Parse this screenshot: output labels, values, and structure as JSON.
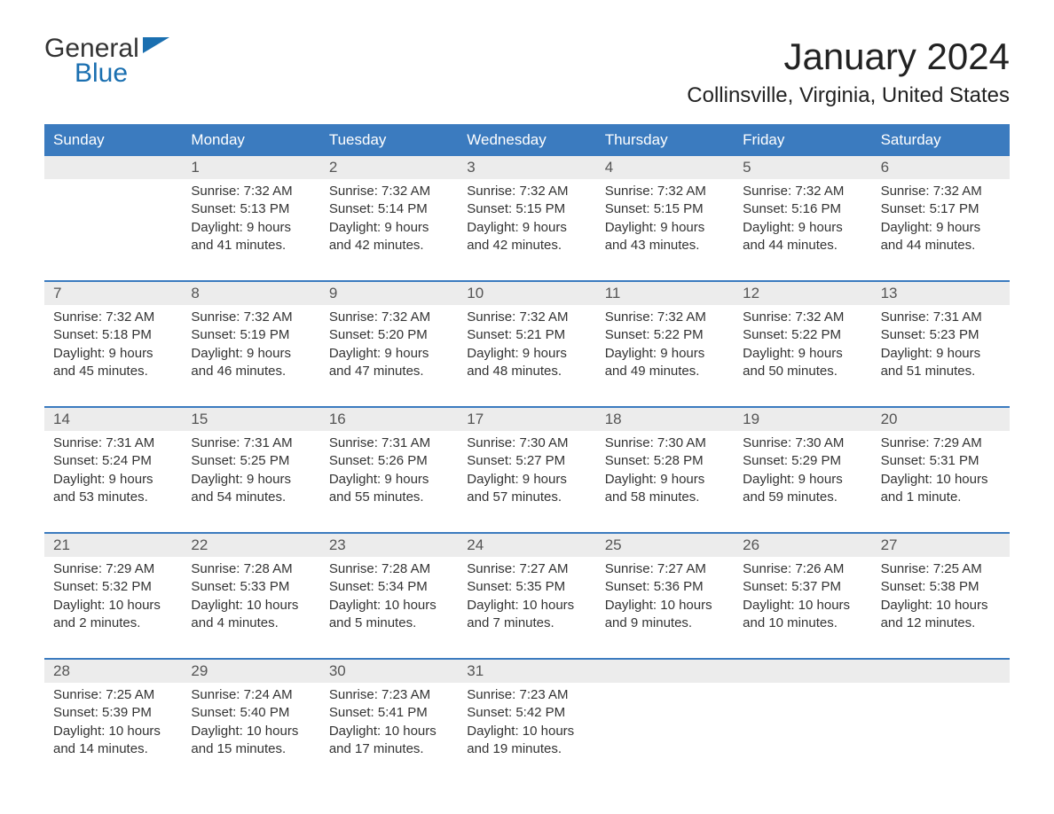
{
  "logo": {
    "line1": "General",
    "line2": "Blue",
    "tri_color": "#1a6fb0"
  },
  "title": "January 2024",
  "location": "Collinsville, Virginia, United States",
  "colors": {
    "header_blue": "#3b7bbf",
    "row_grey": "#ececec",
    "divider": "#3b7bbf",
    "text": "#333333",
    "background": "#ffffff"
  },
  "weekdays": [
    "Sunday",
    "Monday",
    "Tuesday",
    "Wednesday",
    "Thursday",
    "Friday",
    "Saturday"
  ],
  "layout": {
    "cols": 7,
    "rows": 5,
    "start_col": 1
  },
  "weeks": [
    [
      {},
      {
        "n": "1",
        "sunrise": "Sunrise: 7:32 AM",
        "sunset": "Sunset: 5:13 PM",
        "d1": "Daylight: 9 hours",
        "d2": "and 41 minutes."
      },
      {
        "n": "2",
        "sunrise": "Sunrise: 7:32 AM",
        "sunset": "Sunset: 5:14 PM",
        "d1": "Daylight: 9 hours",
        "d2": "and 42 minutes."
      },
      {
        "n": "3",
        "sunrise": "Sunrise: 7:32 AM",
        "sunset": "Sunset: 5:15 PM",
        "d1": "Daylight: 9 hours",
        "d2": "and 42 minutes."
      },
      {
        "n": "4",
        "sunrise": "Sunrise: 7:32 AM",
        "sunset": "Sunset: 5:15 PM",
        "d1": "Daylight: 9 hours",
        "d2": "and 43 minutes."
      },
      {
        "n": "5",
        "sunrise": "Sunrise: 7:32 AM",
        "sunset": "Sunset: 5:16 PM",
        "d1": "Daylight: 9 hours",
        "d2": "and 44 minutes."
      },
      {
        "n": "6",
        "sunrise": "Sunrise: 7:32 AM",
        "sunset": "Sunset: 5:17 PM",
        "d1": "Daylight: 9 hours",
        "d2": "and 44 minutes."
      }
    ],
    [
      {
        "n": "7",
        "sunrise": "Sunrise: 7:32 AM",
        "sunset": "Sunset: 5:18 PM",
        "d1": "Daylight: 9 hours",
        "d2": "and 45 minutes."
      },
      {
        "n": "8",
        "sunrise": "Sunrise: 7:32 AM",
        "sunset": "Sunset: 5:19 PM",
        "d1": "Daylight: 9 hours",
        "d2": "and 46 minutes."
      },
      {
        "n": "9",
        "sunrise": "Sunrise: 7:32 AM",
        "sunset": "Sunset: 5:20 PM",
        "d1": "Daylight: 9 hours",
        "d2": "and 47 minutes."
      },
      {
        "n": "10",
        "sunrise": "Sunrise: 7:32 AM",
        "sunset": "Sunset: 5:21 PM",
        "d1": "Daylight: 9 hours",
        "d2": "and 48 minutes."
      },
      {
        "n": "11",
        "sunrise": "Sunrise: 7:32 AM",
        "sunset": "Sunset: 5:22 PM",
        "d1": "Daylight: 9 hours",
        "d2": "and 49 minutes."
      },
      {
        "n": "12",
        "sunrise": "Sunrise: 7:32 AM",
        "sunset": "Sunset: 5:22 PM",
        "d1": "Daylight: 9 hours",
        "d2": "and 50 minutes."
      },
      {
        "n": "13",
        "sunrise": "Sunrise: 7:31 AM",
        "sunset": "Sunset: 5:23 PM",
        "d1": "Daylight: 9 hours",
        "d2": "and 51 minutes."
      }
    ],
    [
      {
        "n": "14",
        "sunrise": "Sunrise: 7:31 AM",
        "sunset": "Sunset: 5:24 PM",
        "d1": "Daylight: 9 hours",
        "d2": "and 53 minutes."
      },
      {
        "n": "15",
        "sunrise": "Sunrise: 7:31 AM",
        "sunset": "Sunset: 5:25 PM",
        "d1": "Daylight: 9 hours",
        "d2": "and 54 minutes."
      },
      {
        "n": "16",
        "sunrise": "Sunrise: 7:31 AM",
        "sunset": "Sunset: 5:26 PM",
        "d1": "Daylight: 9 hours",
        "d2": "and 55 minutes."
      },
      {
        "n": "17",
        "sunrise": "Sunrise: 7:30 AM",
        "sunset": "Sunset: 5:27 PM",
        "d1": "Daylight: 9 hours",
        "d2": "and 57 minutes."
      },
      {
        "n": "18",
        "sunrise": "Sunrise: 7:30 AM",
        "sunset": "Sunset: 5:28 PM",
        "d1": "Daylight: 9 hours",
        "d2": "and 58 minutes."
      },
      {
        "n": "19",
        "sunrise": "Sunrise: 7:30 AM",
        "sunset": "Sunset: 5:29 PM",
        "d1": "Daylight: 9 hours",
        "d2": "and 59 minutes."
      },
      {
        "n": "20",
        "sunrise": "Sunrise: 7:29 AM",
        "sunset": "Sunset: 5:31 PM",
        "d1": "Daylight: 10 hours",
        "d2": "and 1 minute."
      }
    ],
    [
      {
        "n": "21",
        "sunrise": "Sunrise: 7:29 AM",
        "sunset": "Sunset: 5:32 PM",
        "d1": "Daylight: 10 hours",
        "d2": "and 2 minutes."
      },
      {
        "n": "22",
        "sunrise": "Sunrise: 7:28 AM",
        "sunset": "Sunset: 5:33 PM",
        "d1": "Daylight: 10 hours",
        "d2": "and 4 minutes."
      },
      {
        "n": "23",
        "sunrise": "Sunrise: 7:28 AM",
        "sunset": "Sunset: 5:34 PM",
        "d1": "Daylight: 10 hours",
        "d2": "and 5 minutes."
      },
      {
        "n": "24",
        "sunrise": "Sunrise: 7:27 AM",
        "sunset": "Sunset: 5:35 PM",
        "d1": "Daylight: 10 hours",
        "d2": "and 7 minutes."
      },
      {
        "n": "25",
        "sunrise": "Sunrise: 7:27 AM",
        "sunset": "Sunset: 5:36 PM",
        "d1": "Daylight: 10 hours",
        "d2": "and 9 minutes."
      },
      {
        "n": "26",
        "sunrise": "Sunrise: 7:26 AM",
        "sunset": "Sunset: 5:37 PM",
        "d1": "Daylight: 10 hours",
        "d2": "and 10 minutes."
      },
      {
        "n": "27",
        "sunrise": "Sunrise: 7:25 AM",
        "sunset": "Sunset: 5:38 PM",
        "d1": "Daylight: 10 hours",
        "d2": "and 12 minutes."
      }
    ],
    [
      {
        "n": "28",
        "sunrise": "Sunrise: 7:25 AM",
        "sunset": "Sunset: 5:39 PM",
        "d1": "Daylight: 10 hours",
        "d2": "and 14 minutes."
      },
      {
        "n": "29",
        "sunrise": "Sunrise: 7:24 AM",
        "sunset": "Sunset: 5:40 PM",
        "d1": "Daylight: 10 hours",
        "d2": "and 15 minutes."
      },
      {
        "n": "30",
        "sunrise": "Sunrise: 7:23 AM",
        "sunset": "Sunset: 5:41 PM",
        "d1": "Daylight: 10 hours",
        "d2": "and 17 minutes."
      },
      {
        "n": "31",
        "sunrise": "Sunrise: 7:23 AM",
        "sunset": "Sunset: 5:42 PM",
        "d1": "Daylight: 10 hours",
        "d2": "and 19 minutes."
      },
      {},
      {},
      {}
    ]
  ]
}
